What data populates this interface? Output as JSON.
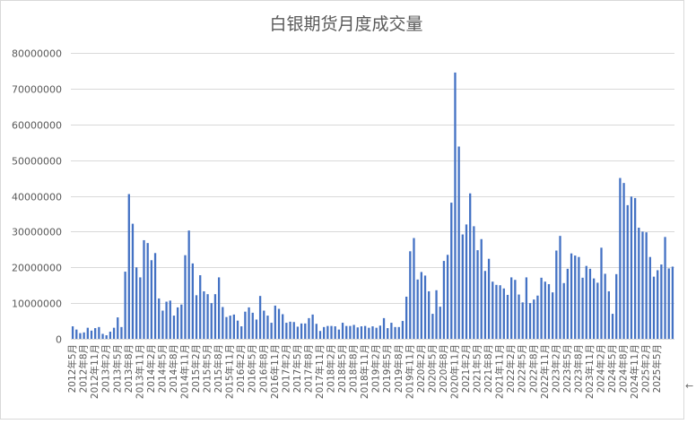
{
  "chart_data": {
    "type": "bar",
    "title": "白银期货月度成交量",
    "xlabel": "",
    "ylabel": "",
    "ylim": [
      0,
      80000000
    ],
    "yticks": [
      0,
      10000000,
      20000000,
      30000000,
      40000000,
      50000000,
      60000000,
      70000000,
      80000000
    ],
    "ytick_labels": [
      "0",
      "10000000",
      "20000000",
      "30000000",
      "40000000",
      "50000000",
      "60000000",
      "70000000",
      "80000000"
    ],
    "grid": true,
    "legend": "none",
    "bar_color": "#4472c4",
    "grid_color": "#d9d9d9",
    "x_tick_labels": [
      "2012年5月",
      "2012年8月",
      "2012年11月",
      "2013年2月",
      "2013年5月",
      "2013年8月",
      "2013年11月",
      "2014年2月",
      "2014年5月",
      "2014年8月",
      "2014年11月",
      "2015年2月",
      "2015年5月",
      "2015年8月",
      "2015年11月",
      "2016年2月",
      "2016年5月",
      "2016年8月",
      "2016年11月",
      "2017年2月",
      "2017年5月",
      "2017年8月",
      "2017年11月",
      "2018年2月",
      "2018年5月",
      "2018年8月",
      "2018年11月",
      "2019年2月",
      "2019年5月",
      "2019年8月",
      "2019年11月",
      "2020年2月",
      "2020年5月",
      "2020年8月",
      "2020年11月",
      "2021年2月",
      "2021年5月",
      "2021年8月",
      "2021年11月",
      "2022年2月",
      "2022年5月",
      "2022年8月",
      "2022年11月",
      "2023年2月",
      "2023年5月",
      "2023年8月",
      "2023年11月",
      "2024年2月",
      "2024年5月",
      "2024年8月",
      "2024年11月",
      "2025年2月",
      "2025年5月"
    ],
    "values": [
      3500000,
      2600000,
      1600000,
      1800000,
      3100000,
      2300000,
      3000000,
      3300000,
      1400000,
      1000000,
      2000000,
      3100000,
      6000000,
      3300000,
      18800000,
      40500000,
      32200000,
      20000000,
      17200000,
      27600000,
      26800000,
      22000000,
      24000000,
      11300000,
      7900000,
      10400000,
      10700000,
      6500000,
      8800000,
      9600000,
      23400000,
      30300000,
      21100000,
      12200000,
      17800000,
      13300000,
      12500000,
      10000000,
      12500000,
      17200000,
      8900000,
      6100000,
      6500000,
      6800000,
      5100000,
      3500000,
      7600000,
      8800000,
      7300000,
      5400000,
      12000000,
      7900000,
      6500000,
      4500000,
      9300000,
      8400000,
      6900000,
      4500000,
      4800000,
      4700000,
      3400000,
      4300000,
      4300000,
      5800000,
      6800000,
      4200000,
      2200000,
      3300000,
      3600000,
      3600000,
      3500000,
      2600000,
      4500000,
      3600000,
      3600000,
      3900000,
      3200000,
      3500000,
      3600000,
      3100000,
      3500000,
      3100000,
      3700000,
      5800000,
      3000000,
      4500000,
      3300000,
      3300000,
      5000000,
      11800000,
      24500000,
      28200000,
      16600000,
      18700000,
      17700000,
      13300000,
      7000000,
      13600000,
      9000000,
      21800000,
      23500000,
      38100000,
      74500000,
      53800000,
      29200000,
      32000000,
      40700000,
      31500000,
      24800000,
      27900000,
      19000000,
      22400000,
      16000000,
      15100000,
      15000000,
      14100000,
      12300000,
      17200000,
      16500000,
      12400000,
      10200000,
      17200000,
      10000000,
      11000000,
      12100000,
      17100000,
      16000000,
      15300000,
      13000000,
      24700000,
      28800000,
      15600000,
      19600000,
      23900000,
      23300000,
      22900000,
      17100000,
      20400000,
      19600000,
      16900000,
      15700000,
      25500000,
      18200000,
      13300000,
      7000000,
      18100000,
      45000000,
      43600000,
      37400000,
      39800000,
      39400000,
      31100000,
      30000000,
      29800000,
      22900000,
      17400000,
      19200000,
      20800000,
      28500000,
      19700000,
      20200000
    ]
  }
}
